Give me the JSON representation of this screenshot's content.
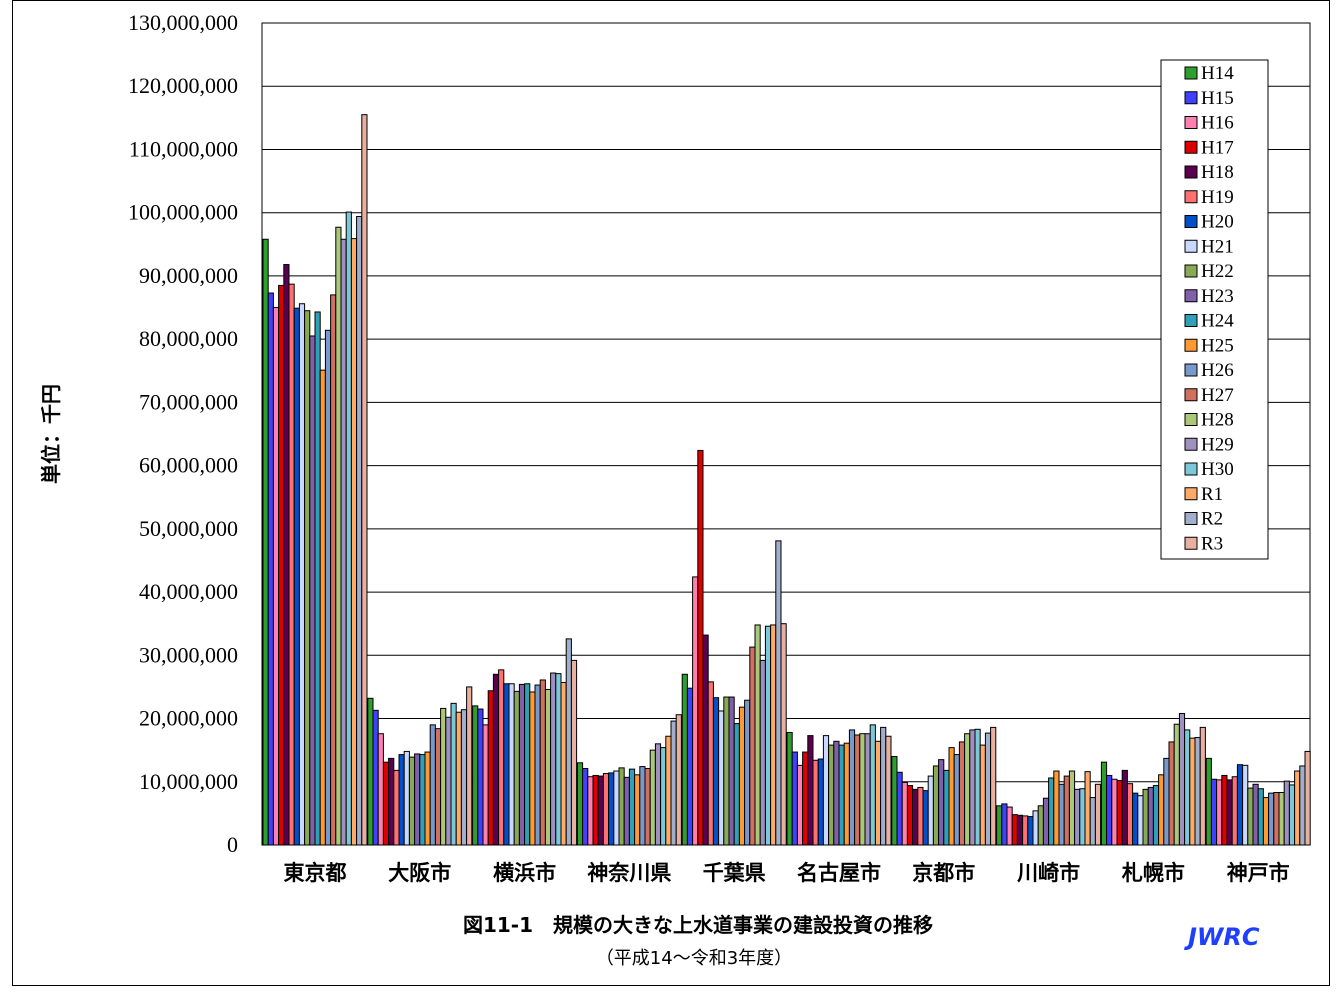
{
  "chart_data": {
    "type": "bar",
    "title": "図11-1　規模の大きな上水道事業の建設投資の推移",
    "subtitle": "（平成14～令和3年度）",
    "ylabel": "単位：千円",
    "xlabel": "",
    "brand": "JWRC",
    "ylim": [
      0,
      130000000
    ],
    "yticks": [
      "0",
      "10,000,000",
      "20,000,000",
      "30,000,000",
      "40,000,000",
      "50,000,000",
      "60,000,000",
      "70,000,000",
      "80,000,000",
      "90,000,000",
      "100,000,000",
      "110,000,000",
      "120,000,000",
      "130,000,000"
    ],
    "grid": true,
    "legend_position": "top-right",
    "categories": [
      "東京都",
      "大阪市",
      "横浜市",
      "神奈川県",
      "千葉県",
      "名古屋市",
      "京都市",
      "川崎市",
      "札幌市",
      "神戸市"
    ],
    "series": [
      {
        "name": "H14",
        "color": "#2e9e2e",
        "values": [
          95800000,
          23200000,
          22000000,
          13000000,
          27000000,
          17800000,
          14000000,
          6200000,
          13100000,
          13700000
        ]
      },
      {
        "name": "H15",
        "color": "#4040ff",
        "values": [
          87300000,
          21300000,
          21500000,
          12100000,
          24800000,
          14700000,
          11500000,
          6500000,
          11000000,
          10400000
        ]
      },
      {
        "name": "H16",
        "color": "#ff80b0",
        "values": [
          85000000,
          17600000,
          19000000,
          10800000,
          42400000,
          12600000,
          9900000,
          6000000,
          10400000,
          10300000
        ]
      },
      {
        "name": "H17",
        "color": "#dd0000",
        "values": [
          88500000,
          13100000,
          24400000,
          11000000,
          62400000,
          14700000,
          9400000,
          4800000,
          10200000,
          11000000
        ]
      },
      {
        "name": "H18",
        "color": "#5a0050",
        "values": [
          91800000,
          13700000,
          27000000,
          10900000,
          33200000,
          17300000,
          8800000,
          4700000,
          11800000,
          10300000
        ]
      },
      {
        "name": "H19",
        "color": "#ff7070",
        "values": [
          88700000,
          11800000,
          27700000,
          11300000,
          25800000,
          13400000,
          9100000,
          4600000,
          9700000,
          10800000
        ]
      },
      {
        "name": "H20",
        "color": "#0050cc",
        "values": [
          84900000,
          14300000,
          25500000,
          11400000,
          23300000,
          13600000,
          8600000,
          4500000,
          8200000,
          12700000
        ]
      },
      {
        "name": "H21",
        "color": "#c8d8ff",
        "values": [
          85600000,
          14800000,
          25500000,
          11700000,
          21200000,
          17300000,
          10900000,
          5400000,
          7800000,
          12600000
        ]
      },
      {
        "name": "H22",
        "color": "#88aa55",
        "values": [
          84500000,
          13900000,
          24300000,
          12200000,
          23400000,
          15800000,
          12500000,
          6200000,
          8800000,
          9000000
        ]
      },
      {
        "name": "H23",
        "color": "#8060aa",
        "values": [
          80500000,
          14400000,
          25400000,
          10700000,
          23400000,
          16400000,
          13500000,
          7400000,
          9100000,
          9600000
        ]
      },
      {
        "name": "H24",
        "color": "#30a0b8",
        "values": [
          84300000,
          14300000,
          25500000,
          12000000,
          19200000,
          15800000,
          11800000,
          10600000,
          9400000,
          8900000
        ]
      },
      {
        "name": "H25",
        "color": "#ff9933",
        "values": [
          75100000,
          14700000,
          24200000,
          11100000,
          21800000,
          16100000,
          15400000,
          11700000,
          11100000,
          7500000
        ]
      },
      {
        "name": "H26",
        "color": "#7799cc",
        "values": [
          81400000,
          19000000,
          25300000,
          12400000,
          22900000,
          18200000,
          14300000,
          9600000,
          13700000,
          8200000
        ]
      },
      {
        "name": "H27",
        "color": "#d07060",
        "values": [
          87000000,
          18400000,
          26100000,
          12100000,
          31300000,
          17400000,
          16300000,
          10900000,
          16300000,
          8300000
        ]
      },
      {
        "name": "H28",
        "color": "#aac878",
        "values": [
          97700000,
          21600000,
          24600000,
          15000000,
          34800000,
          17600000,
          17600000,
          11700000,
          19100000,
          8300000
        ]
      },
      {
        "name": "H29",
        "color": "#a090c0",
        "values": [
          95800000,
          20200000,
          27200000,
          16000000,
          29200000,
          17600000,
          18200000,
          8800000,
          20800000,
          10100000
        ]
      },
      {
        "name": "H30",
        "color": "#7cc8d8",
        "values": [
          100100000,
          22400000,
          27100000,
          15400000,
          34600000,
          19000000,
          18300000,
          8900000,
          18200000,
          9500000
        ]
      },
      {
        "name": "R1",
        "color": "#ffaa66",
        "values": [
          95900000,
          21000000,
          25700000,
          17200000,
          34800000,
          16400000,
          15800000,
          11600000,
          16900000,
          11700000
        ]
      },
      {
        "name": "R2",
        "color": "#a0b0cc",
        "values": [
          99400000,
          21400000,
          32600000,
          19600000,
          48100000,
          18600000,
          17700000,
          7500000,
          17000000,
          12500000
        ]
      },
      {
        "name": "R3",
        "color": "#e8b0a0",
        "values": [
          115500000,
          25000000,
          29200000,
          20600000,
          35000000,
          17200000,
          18600000,
          9600000,
          18600000,
          14800000
        ]
      }
    ]
  }
}
